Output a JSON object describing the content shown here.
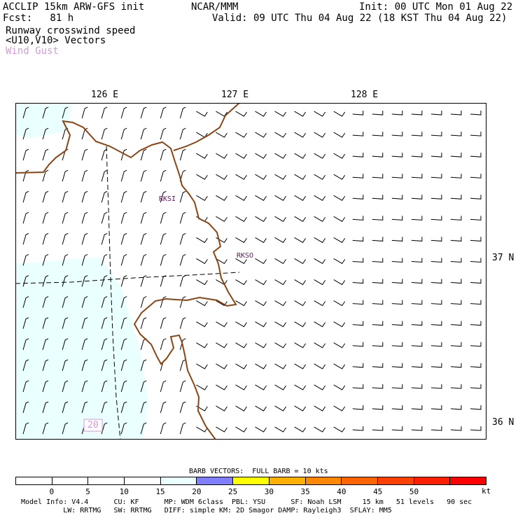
{
  "header": {
    "model_line": "ACCLIP 15km ARW-GFS init",
    "center": "NCAR/MMM",
    "init": "Init: 00 UTC Mon 01 Aug 22",
    "forecast": "Fcst:   81 h",
    "valid": "Valid: 09 UTC Thu 04 Aug 22 (18 KST Thu 04 Aug 22)",
    "field_1": "Runway crosswind speed",
    "field_2": "<U10,V10> Vectors",
    "field_3": "Wind Gust",
    "field_3_color": "#d49ad4"
  },
  "map": {
    "lon_labels": [
      "126 E",
      "127 E",
      "128 E"
    ],
    "lat_labels": [
      "37 N",
      "36 N"
    ],
    "stations": [
      "RKSI",
      "RKSO"
    ],
    "station_color": "#5a1a5a",
    "coast_color": "#8b4513",
    "contour_label": "20",
    "light_fill_color": "#eaffff"
  },
  "legend": {
    "barb_title": "BARB VECTORS:  FULL BARB = 10 kts",
    "ticks": [
      "0",
      "5",
      "10",
      "15",
      "20",
      "25",
      "30",
      "35",
      "40",
      "45",
      "50"
    ],
    "unit": "kt",
    "colors": [
      "#ffffff",
      "#ffffff",
      "#ffffff",
      "#ffffff",
      "#eaffff",
      "#7f7fff",
      "#ffff00",
      "#ffb000",
      "#ff8800",
      "#ff6400",
      "#ff4000",
      "#ff2000",
      "#ff0000"
    ]
  },
  "footer": {
    "line1": "Model Info: V4.4      CU: KF      MP: WDM 6class  PBL: YSU      SF: Noah LSM     15 km   51 levels   90 sec",
    "line2": "          LW: RRTMG   SW: RRTMG   DIFF: simple KM: 2D Smagor DAMP: Rayleigh3  SFLAY: MM5"
  }
}
